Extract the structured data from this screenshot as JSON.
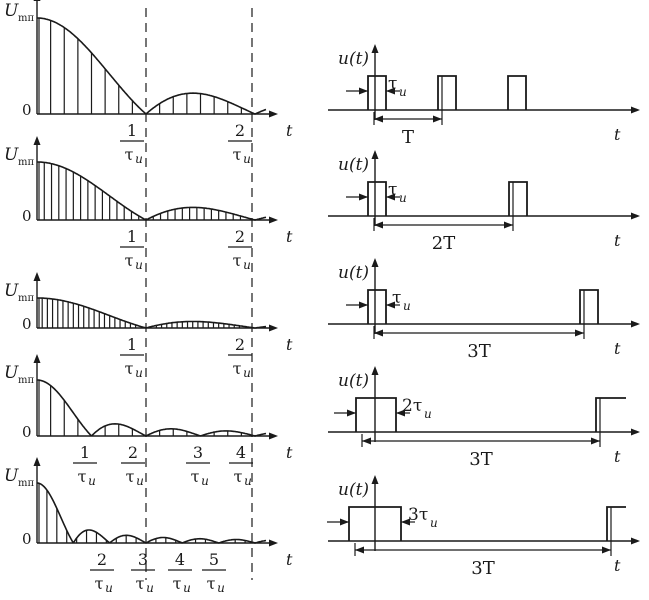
{
  "spectrum_rows": [
    {
      "ylabel_main": "U",
      "ylabel_sub": "mπ",
      "zero": "0",
      "t": "t",
      "tick_labels": [
        {
          "num": "1",
          "den": "τ",
          "den_sub": "u"
        },
        {
          "num": "2",
          "den": "τ",
          "den_sub": "u"
        }
      ]
    },
    {
      "ylabel_main": "U",
      "ylabel_sub": "mπ",
      "zero": "0",
      "t": "t",
      "tick_labels": [
        {
          "num": "1",
          "den": "τ",
          "den_sub": "u"
        },
        {
          "num": "2",
          "den": "τ",
          "den_sub": "u"
        }
      ]
    },
    {
      "ylabel_main": "U",
      "ylabel_sub": "mπ",
      "zero": "0",
      "t": "t",
      "tick_labels": [
        {
          "num": "1",
          "den": "τ",
          "den_sub": "u"
        },
        {
          "num": "2",
          "den": "τ",
          "den_sub": "u"
        }
      ]
    },
    {
      "ylabel_main": "U",
      "ylabel_sub": "mπ",
      "zero": "0",
      "t": "t",
      "tick_labels": [
        {
          "num": "1",
          "den": "τ",
          "den_sub": "u"
        },
        {
          "num": "2",
          "den": "τ",
          "den_sub": "u"
        },
        {
          "num": "3",
          "den": "τ",
          "den_sub": "u"
        },
        {
          "num": "4",
          "den": "τ",
          "den_sub": "u"
        }
      ]
    },
    {
      "ylabel_main": "U",
      "ylabel_sub": "mπ",
      "zero": "0",
      "t": "t",
      "tick_labels": [
        {
          "num": "2",
          "den": "τ",
          "den_sub": "u"
        },
        {
          "num": "3",
          "den": "τ",
          "den_sub": "u"
        },
        {
          "num": "4",
          "den": "τ",
          "den_sub": "u"
        },
        {
          "num": "5",
          "den": "τ",
          "den_sub": "u"
        }
      ]
    }
  ],
  "pulse_rows": [
    {
      "ylabel": "u(t)",
      "t": "t",
      "width_label": "τ",
      "width_sub": "u",
      "period_label": "T"
    },
    {
      "ylabel": "u(t)",
      "t": "t",
      "width_label": "τ",
      "width_sub": "u",
      "period_label": "2T"
    },
    {
      "ylabel": "u(t)",
      "t": "t",
      "width_label": "τ",
      "width_sub": "u",
      "period_label": "3T"
    },
    {
      "ylabel": "u(t)",
      "t": "t",
      "width_label": "2τ",
      "width_sub": "u",
      "period_label": "3T"
    },
    {
      "ylabel": "u(t)",
      "t": "t",
      "width_label": "3τ",
      "width_sub": "u",
      "period_label": "3T"
    }
  ]
}
